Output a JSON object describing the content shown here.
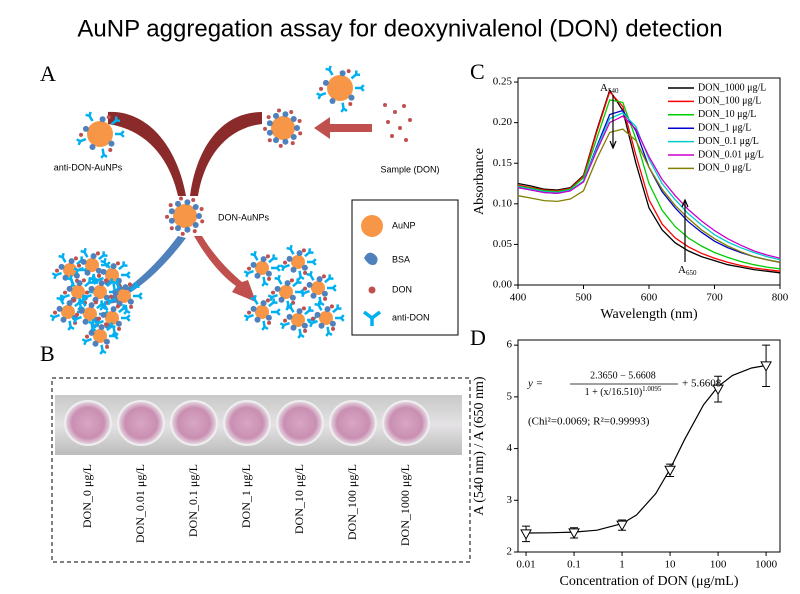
{
  "title": "AuNP aggregation assay for deoxynivalenol (DON) detection",
  "panel_a": {
    "label": "A",
    "anti_don_aunps": "anti-DON-AuNPs",
    "don_aunps": "DON-AuNPs",
    "sample": "Sample (DON)",
    "legend": [
      "AuNP",
      "BSA",
      "DON",
      "anti-DON"
    ]
  },
  "panel_b": {
    "label": "B",
    "wells": [
      "DON_0 μg/L",
      "DON_0.01 μg/L",
      "DON_0.1 μg/L",
      "DON_1 μg/L",
      "DON_10 μg/L",
      "DON_100 μg/L",
      "DON_1000 μg/L"
    ]
  },
  "chart_data": [
    {
      "type": "line",
      "panel": "C",
      "xlabel": "Wavelength (nm)",
      "ylabel": "Absorbance",
      "x": [
        400,
        420,
        440,
        460,
        480,
        500,
        520,
        540,
        560,
        580,
        600,
        620,
        640,
        660,
        680,
        700,
        720,
        740,
        760,
        780,
        800
      ],
      "series": [
        {
          "name": "DON_1000 μg/L",
          "color": "#000000",
          "values": [
            0.125,
            0.122,
            0.118,
            0.117,
            0.12,
            0.135,
            0.19,
            0.24,
            0.215,
            0.15,
            0.095,
            0.068,
            0.052,
            0.042,
            0.035,
            0.03,
            0.025,
            0.022,
            0.019,
            0.017,
            0.015
          ]
        },
        {
          "name": "DON_100 μg/L",
          "color": "#ff0000",
          "values": [
            0.123,
            0.12,
            0.117,
            0.116,
            0.119,
            0.134,
            0.188,
            0.238,
            0.22,
            0.16,
            0.105,
            0.075,
            0.058,
            0.047,
            0.039,
            0.033,
            0.028,
            0.024,
            0.021,
            0.019,
            0.017
          ]
        },
        {
          "name": "DON_10 μg/L",
          "color": "#00cc00",
          "values": [
            0.122,
            0.119,
            0.116,
            0.115,
            0.118,
            0.132,
            0.18,
            0.228,
            0.225,
            0.18,
            0.125,
            0.092,
            0.072,
            0.058,
            0.048,
            0.04,
            0.034,
            0.029,
            0.025,
            0.022,
            0.02
          ]
        },
        {
          "name": "DON_1 μg/L",
          "color": "#0000cc",
          "values": [
            0.12,
            0.117,
            0.114,
            0.113,
            0.116,
            0.128,
            0.17,
            0.21,
            0.215,
            0.19,
            0.145,
            0.115,
            0.095,
            0.078,
            0.065,
            0.054,
            0.046,
            0.04,
            0.035,
            0.031,
            0.028
          ]
        },
        {
          "name": "DON_0.1 μg/L",
          "color": "#00cccc",
          "values": [
            0.121,
            0.118,
            0.115,
            0.114,
            0.117,
            0.128,
            0.168,
            0.205,
            0.212,
            0.195,
            0.155,
            0.125,
            0.105,
            0.088,
            0.074,
            0.062,
            0.053,
            0.046,
            0.04,
            0.035,
            0.031
          ]
        },
        {
          "name": "DON_0.01 μg/L",
          "color": "#cc00cc",
          "values": [
            0.12,
            0.117,
            0.114,
            0.113,
            0.116,
            0.127,
            0.165,
            0.2,
            0.208,
            0.192,
            0.158,
            0.13,
            0.11,
            0.093,
            0.079,
            0.067,
            0.057,
            0.049,
            0.042,
            0.037,
            0.033
          ]
        },
        {
          "name": "DON_0 μg/L",
          "color": "#808000",
          "values": [
            0.11,
            0.107,
            0.104,
            0.103,
            0.106,
            0.116,
            0.155,
            0.188,
            0.192,
            0.178,
            0.145,
            0.118,
            0.098,
            0.082,
            0.068,
            0.057,
            0.048,
            0.041,
            0.035,
            0.031,
            0.028
          ]
        }
      ],
      "xlim": [
        400,
        800
      ],
      "xticks": [
        400,
        500,
        600,
        700,
        800
      ],
      "ylim": [
        0,
        0.255
      ],
      "yticks": [
        {
          "value": 0,
          "label": "0.00"
        },
        {
          "value": 0.05,
          "label": "0.05"
        },
        {
          "value": 0.1,
          "label": "0.10"
        },
        {
          "value": 0.15,
          "label": "0.15"
        },
        {
          "value": 0.2,
          "label": "0.20"
        },
        {
          "value": 0.25,
          "label": "0.25"
        }
      ],
      "annotations": [
        {
          "text": "A",
          "sub": "540"
        },
        {
          "text": "A",
          "sub": "650"
        }
      ],
      "legend": "upper right",
      "grid": false
    },
    {
      "type": "scatter",
      "panel": "D",
      "xlabel": "Concentration of DON (μg/mL)",
      "ylabel": "A (540 nm) / A (650 nm)",
      "x": [
        0.01,
        0.1,
        1,
        10,
        100,
        1000
      ],
      "values": [
        2.35,
        2.37,
        2.52,
        3.58,
        5.15,
        5.6
      ],
      "errors": [
        0.15,
        0.1,
        0.1,
        0.12,
        0.25,
        0.4
      ],
      "color": "#000000",
      "fit": {
        "x": [
          0.01,
          0.03,
          0.1,
          0.3,
          1,
          2,
          5,
          10,
          20,
          50,
          100,
          200,
          500,
          1000
        ],
        "values": [
          2.367,
          2.371,
          2.384,
          2.422,
          2.549,
          2.715,
          3.125,
          3.605,
          4.172,
          4.849,
          5.201,
          5.415,
          5.559,
          5.609
        ]
      },
      "formula": {
        "lhs": "y =",
        "numerator": "2.3650 − 5.6608",
        "denominator": "1 + (x/16.510)",
        "exponent": "1.0095",
        "tail": "+ 5.6608"
      },
      "stats": "(Chi²=0.0069; R²=0.99993)",
      "log_x": true,
      "xlim": [
        0.0068,
        1950
      ],
      "xticks": [
        0.01,
        0.1,
        1,
        10,
        100,
        1000
      ],
      "ylim": [
        2,
        6.1
      ],
      "yticks": [
        2,
        3,
        4,
        5,
        6
      ],
      "grid": false
    }
  ]
}
